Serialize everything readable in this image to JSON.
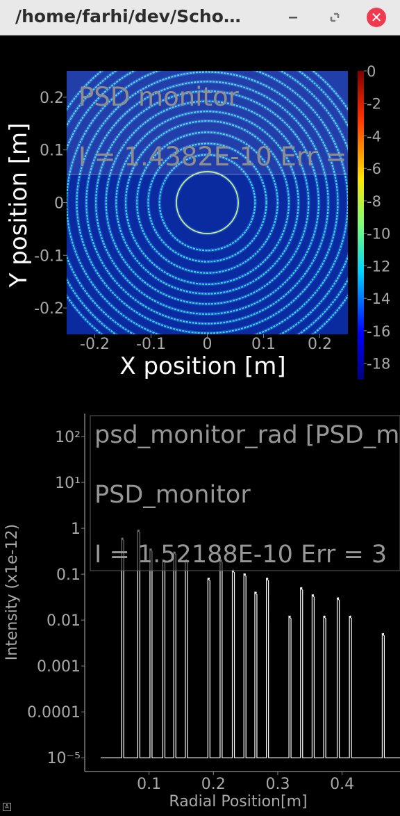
{
  "window": {
    "title": "/home/farhi/dev/Scho…",
    "minimize_symbol": "–",
    "maximize_symbol": "⤢",
    "close_symbol": "✕"
  },
  "colors": {
    "titlebar_bg": "#e9e9e9",
    "close_button": "#ef3a4f",
    "background": "#000000",
    "plot_bg": "#0a2aa0",
    "ring": "#3fd6c8",
    "text_gray": "#a9a9a9",
    "curve": "#ffffff"
  },
  "chart_data": [
    {
      "type": "heatmap",
      "title_lines": [
        "PSD monitor",
        "I = 1.4382E-10 Err ="
      ],
      "xlabel": "X position [m]",
      "ylabel": "Y position [m]",
      "xlim": [
        -0.25,
        0.25
      ],
      "ylim": [
        -0.25,
        0.25
      ],
      "xticks": [
        -0.2,
        -0.1,
        0,
        0.1,
        0.2
      ],
      "xtick_labels": [
        "-0.2",
        "-0.1",
        "0",
        "0.1",
        "0.2"
      ],
      "yticks": [
        0.2,
        0.1,
        0,
        -0.1,
        -0.2
      ],
      "ytick_labels": [
        "0.2",
        "0.1",
        "0",
        "-0.1",
        "-0.2"
      ],
      "colorbar": {
        "ticks": [
          0,
          -2,
          -4,
          -6,
          -8,
          -10,
          -12,
          -14,
          -16,
          -18
        ],
        "tick_labels": [
          "0",
          "-2",
          "-4",
          "-6",
          "-8",
          "-10",
          "-12",
          "-14",
          "-16",
          "-18"
        ],
        "range": [
          -19,
          0
        ]
      },
      "ring_radii": [
        0.055,
        0.085,
        0.105,
        0.125,
        0.145,
        0.162,
        0.18,
        0.198,
        0.215,
        0.232,
        0.25,
        0.268,
        0.285,
        0.3
      ]
    },
    {
      "type": "line",
      "title_lines": [
        "psd_monitor_rad [PSD_m",
        "PSD_monitor",
        "I = 1.52188E-10 Err = 3"
      ],
      "xlabel": "Radial Position[m]",
      "ylabel": "Intensity (x1e-12)",
      "log_y": true,
      "xlim": [
        0,
        0.49
      ],
      "ylim_exp": [
        -5.3,
        2.5
      ],
      "xticks": [
        0.1,
        0.2,
        0.3,
        0.4
      ],
      "xtick_labels": [
        "0.1",
        "0.2",
        "0.3",
        "0.4"
      ],
      "yticks_exp": [
        2,
        1,
        0,
        -1,
        -2,
        -3,
        -4,
        -5
      ],
      "ytick_labels": [
        "10²",
        "10¹",
        "1",
        "0.1",
        "0.01",
        "0.001",
        "0.0001",
        "10⁻⁵"
      ],
      "baseline": 1e-05,
      "peaks": [
        {
          "x": 0.059,
          "y": 0.6
        },
        {
          "x": 0.084,
          "y": 0.9
        },
        {
          "x": 0.103,
          "y": 0.35
        },
        {
          "x": 0.123,
          "y": 0.2
        },
        {
          "x": 0.14,
          "y": 0.3
        },
        {
          "x": 0.158,
          "y": 0.2
        },
        {
          "x": 0.193,
          "y": 0.08
        },
        {
          "x": 0.212,
          "y": 0.2
        },
        {
          "x": 0.231,
          "y": 0.12
        },
        {
          "x": 0.249,
          "y": 0.1
        },
        {
          "x": 0.266,
          "y": 0.04
        },
        {
          "x": 0.284,
          "y": 0.08
        },
        {
          "x": 0.319,
          "y": 0.012
        },
        {
          "x": 0.337,
          "y": 0.05
        },
        {
          "x": 0.355,
          "y": 0.035
        },
        {
          "x": 0.373,
          "y": 0.012
        },
        {
          "x": 0.394,
          "y": 0.03
        },
        {
          "x": 0.413,
          "y": 0.012
        },
        {
          "x": 0.464,
          "y": 0.005
        }
      ]
    }
  ]
}
